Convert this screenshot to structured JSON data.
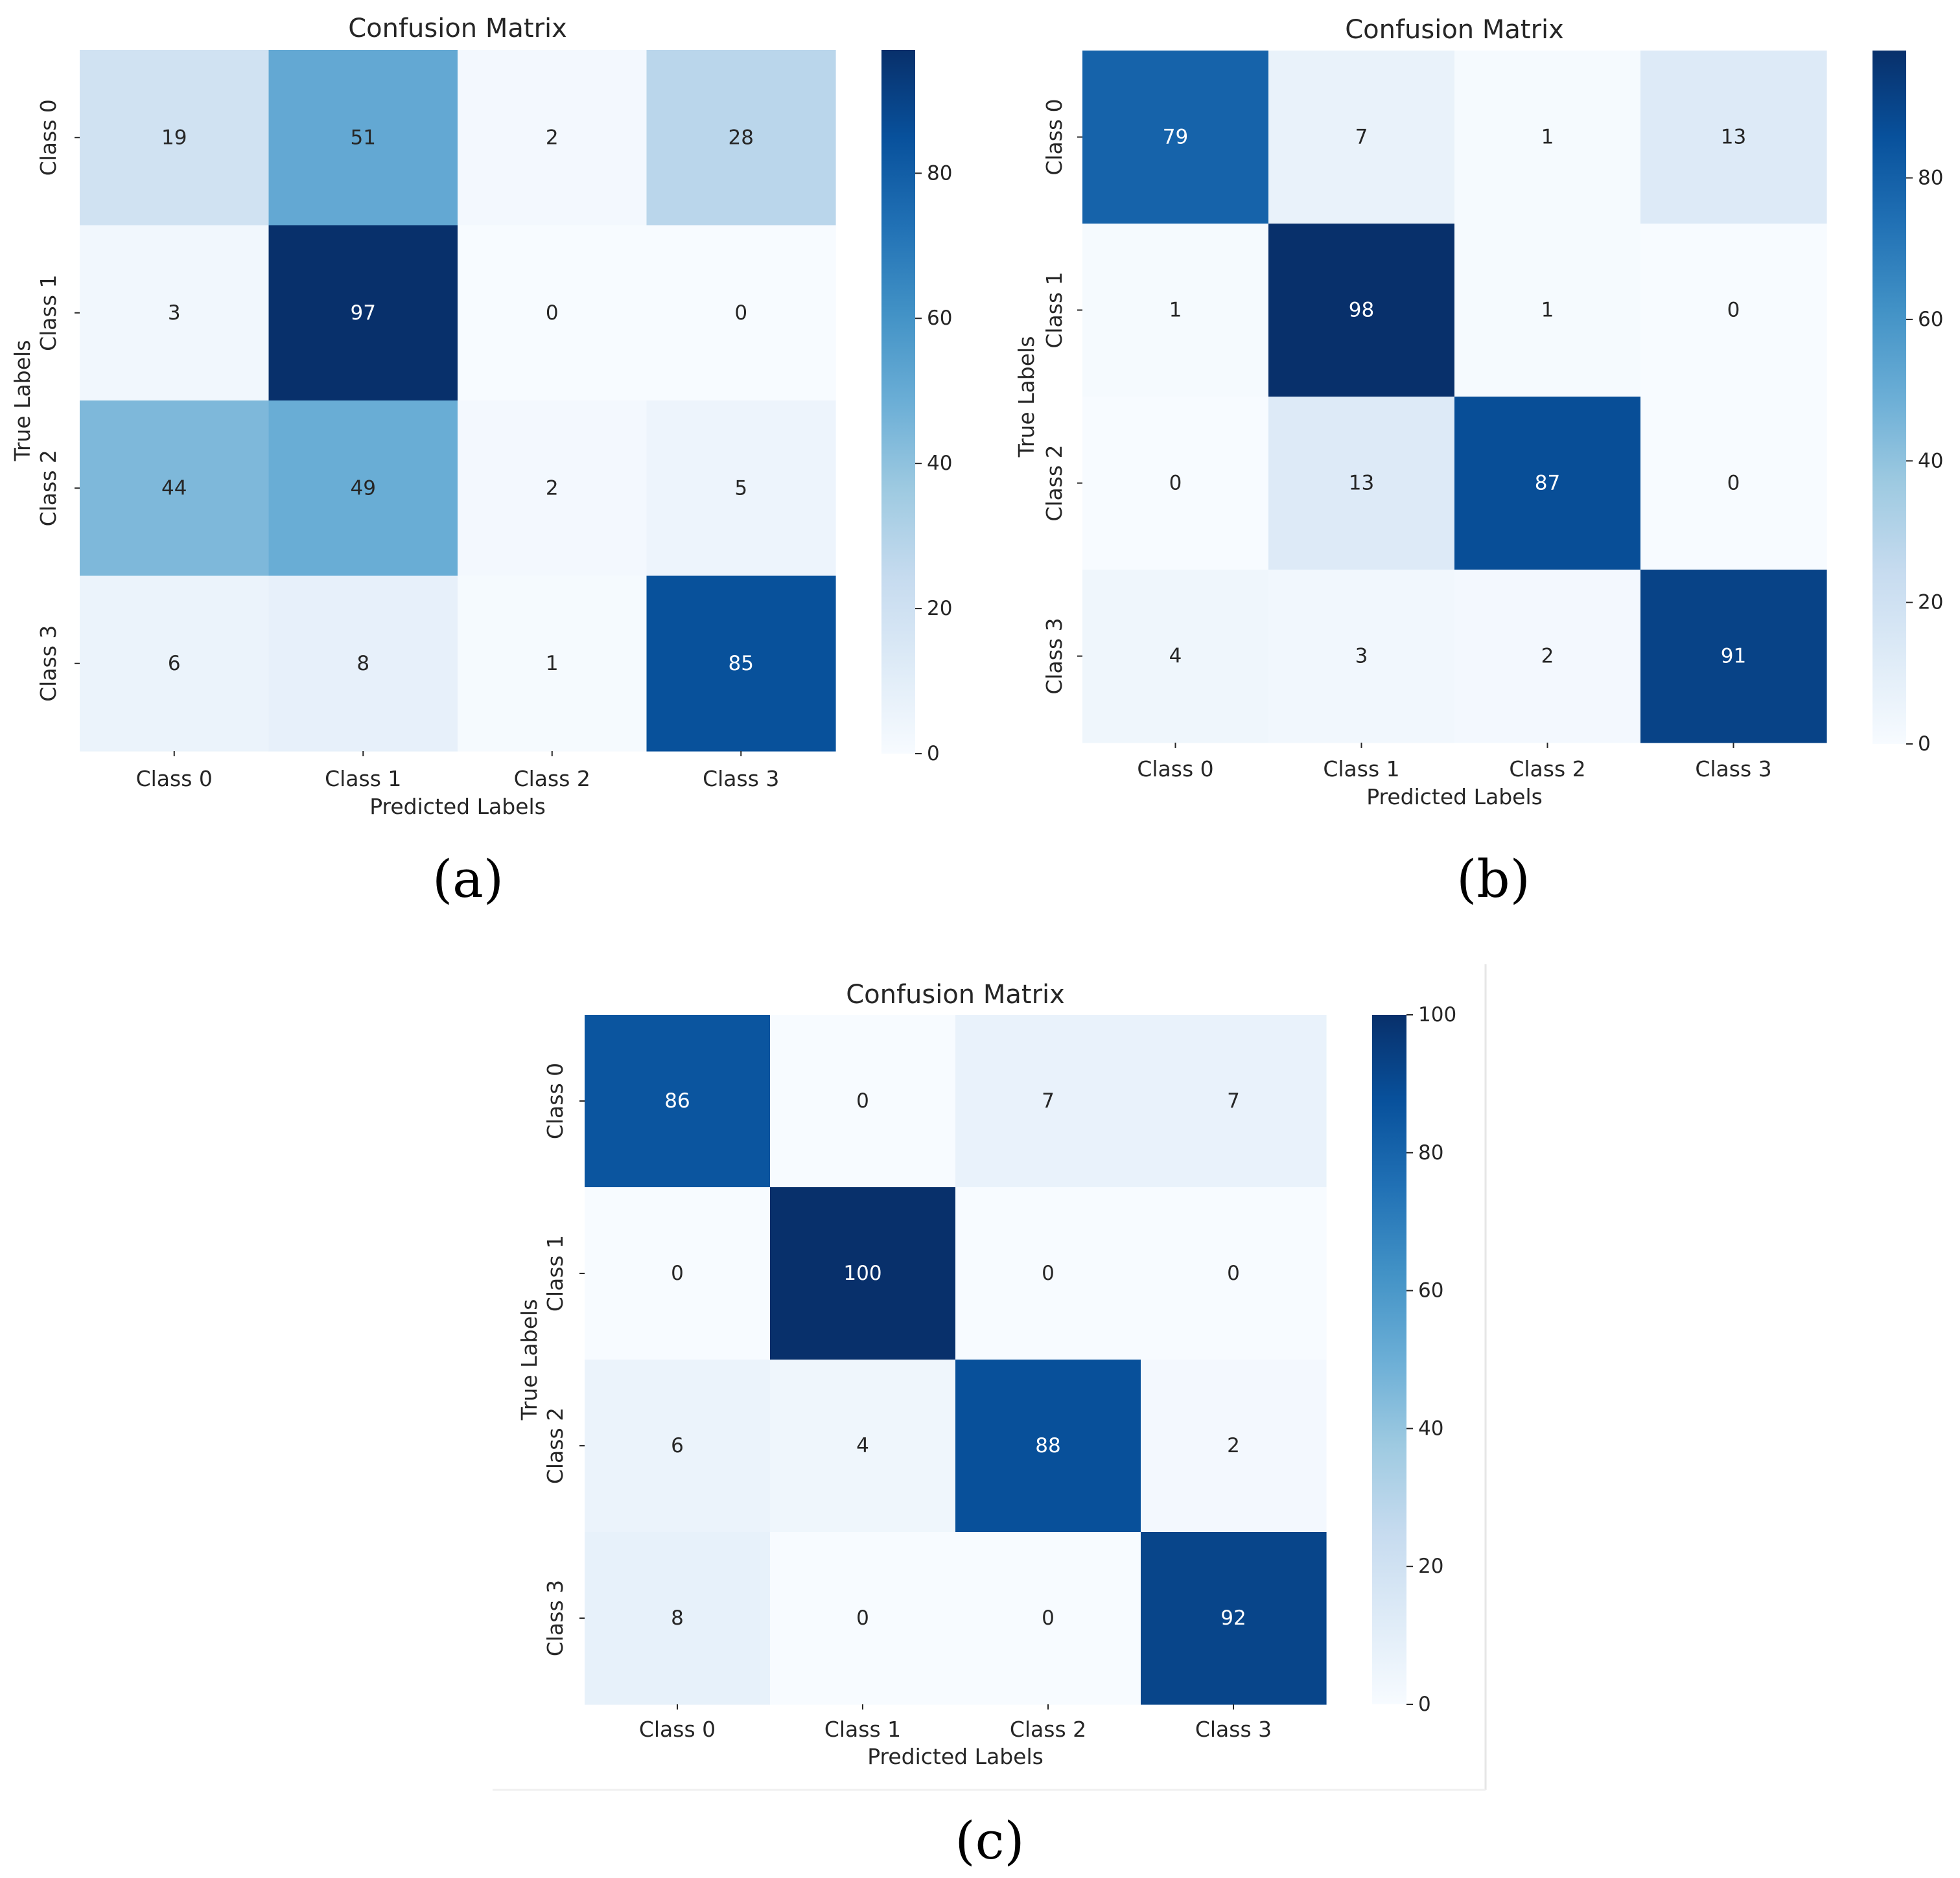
{
  "chart_data": [
    {
      "type": "heatmap",
      "title": "Confusion Matrix",
      "xlabel": "Predicted Labels",
      "ylabel": "True Labels",
      "x_categories": [
        "Class 0",
        "Class 1",
        "Class 2",
        "Class 3"
      ],
      "y_categories": [
        "Class 0",
        "Class 1",
        "Class 2",
        "Class 3"
      ],
      "values": [
        [
          19,
          51,
          2,
          28
        ],
        [
          3,
          97,
          0,
          0
        ],
        [
          44,
          49,
          2,
          5
        ],
        [
          6,
          8,
          1,
          85
        ]
      ],
      "colorbar": {
        "min": 0,
        "max": 97,
        "ticks": [
          "0",
          "20",
          "40",
          "60",
          "80"
        ]
      },
      "colormap": "Blues",
      "caption": "(a)"
    },
    {
      "type": "heatmap",
      "title": "Confusion Matrix",
      "xlabel": "Predicted Labels",
      "ylabel": "True Labels",
      "x_categories": [
        "Class 0",
        "Class 1",
        "Class 2",
        "Class 3"
      ],
      "y_categories": [
        "Class 0",
        "Class 1",
        "Class 2",
        "Class 3"
      ],
      "values": [
        [
          79,
          7,
          1,
          13
        ],
        [
          1,
          98,
          1,
          0
        ],
        [
          0,
          13,
          87,
          0
        ],
        [
          4,
          3,
          2,
          91
        ]
      ],
      "colorbar": {
        "min": 0,
        "max": 98,
        "ticks": [
          "0",
          "20",
          "40",
          "60",
          "80"
        ]
      },
      "colormap": "Blues",
      "caption": "(b)"
    },
    {
      "type": "heatmap",
      "title": "Confusion Matrix",
      "xlabel": "Predicted Labels",
      "ylabel": "True Labels",
      "x_categories": [
        "Class 0",
        "Class 1",
        "Class 2",
        "Class 3"
      ],
      "y_categories": [
        "Class 0",
        "Class 1",
        "Class 2",
        "Class 3"
      ],
      "values": [
        [
          86,
          0,
          7,
          7
        ],
        [
          0,
          100,
          0,
          0
        ],
        [
          6,
          4,
          88,
          2
        ],
        [
          8,
          0,
          0,
          92
        ]
      ],
      "colorbar": {
        "min": 0,
        "max": 100,
        "ticks": [
          "0",
          "20",
          "40",
          "60",
          "80",
          "100"
        ]
      },
      "colormap": "Blues",
      "caption": "(c)"
    }
  ]
}
